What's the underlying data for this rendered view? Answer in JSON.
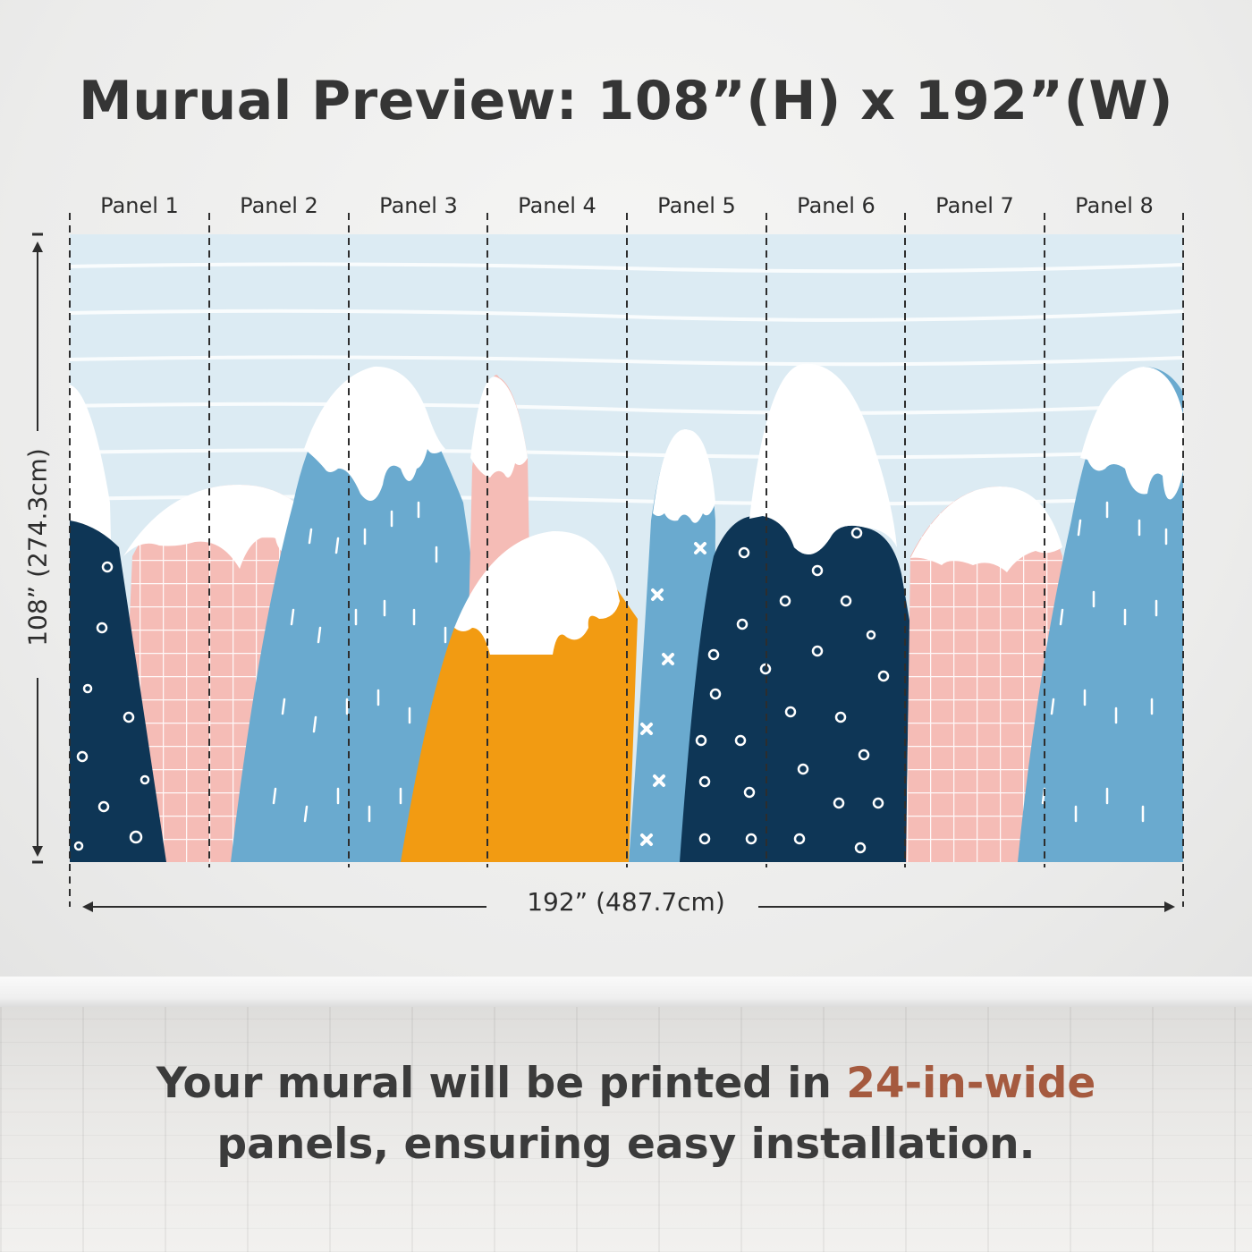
{
  "title": "Murual Preview: 108”(H) x 192”(W)",
  "panels": [
    "Panel 1",
    "Panel 2",
    "Panel 3",
    "Panel 4",
    "Panel 5",
    "Panel 6",
    "Panel 7",
    "Panel 8"
  ],
  "width_dimension": "192” (487.7cm)",
  "height_dimension": "108” (274.3cm)",
  "footer": {
    "line1_prefix": "Your mural will be printed in ",
    "line1_accent": "24-in-wide",
    "line2": "panels, ensuring easy installation."
  },
  "colors": {
    "sky": "#dcebf3",
    "navy": "#0e3656",
    "blue": "#6aaacf",
    "pink": "#f5bcb6",
    "orange": "#f29b12",
    "snow": "#ffffff",
    "accent_text": "#a55a3f"
  }
}
